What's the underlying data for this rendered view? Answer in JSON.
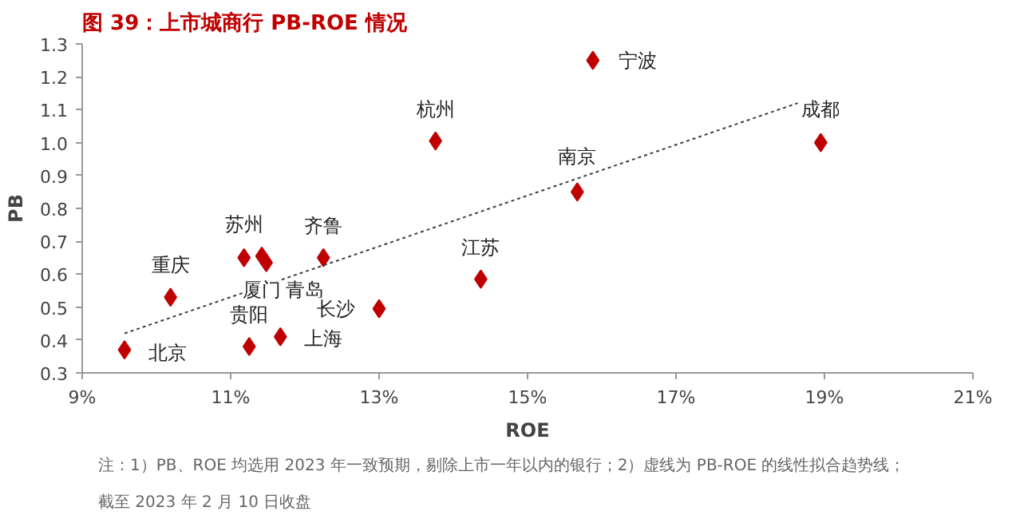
{
  "chart_data": {
    "type": "scatter",
    "title": "图 39：上市城商行 PB-ROE 情况",
    "xlabel": "ROE",
    "ylabel": "PB",
    "xlim": [
      9,
      21
    ],
    "xticks": [
      {
        "value": 9,
        "label": "9%"
      },
      {
        "value": 11,
        "label": "11%"
      },
      {
        "value": 13,
        "label": "13%"
      },
      {
        "value": 15,
        "label": "15%"
      },
      {
        "value": 17,
        "label": "17%"
      },
      {
        "value": 19,
        "label": "19%"
      },
      {
        "value": 21,
        "label": "21%"
      }
    ],
    "ylim": [
      0.3,
      1.3
    ],
    "yticks": [
      0.3,
      0.4,
      0.5,
      0.6,
      0.7,
      0.8,
      0.9,
      {
        "value": 1.0,
        "label": "1.0"
      },
      1.1,
      1.2,
      1.3
    ],
    "grid": false,
    "marker": "diamond",
    "series": [
      {
        "color": "#c00000",
        "x": [
          9.57,
          10.19,
          11.18,
          11.42,
          11.48,
          11.25,
          12.25,
          11.67,
          13.0,
          13.76,
          14.37,
          15.88,
          15.67,
          18.95
        ],
        "values": [
          0.37,
          0.53,
          0.65,
          0.655,
          0.635,
          0.38,
          0.65,
          0.41,
          0.495,
          1.005,
          0.585,
          1.25,
          0.85,
          1.0
        ]
      },
      {
        "type": "line",
        "color": "#404040",
        "line_style": "dotted",
        "marker": "none",
        "x": [
          9.57,
          18.64
        ],
        "values": [
          0.42,
          1.12
        ]
      }
    ],
    "annotations": [
      {
        "text": "北京",
        "x": 9.57,
        "y": 0.37
      },
      {
        "text": "重庆",
        "x": 10.19,
        "y": 0.53
      },
      {
        "text": "苏州",
        "x": 11.18,
        "y": 0.65
      },
      {
        "text": "厦门",
        "x": 11.42,
        "y": 0.655
      },
      {
        "text": "青岛",
        "x": 11.48,
        "y": 0.635
      },
      {
        "text": "贵阳",
        "x": 11.25,
        "y": 0.38
      },
      {
        "text": "齐鲁",
        "x": 12.25,
        "y": 0.65
      },
      {
        "text": "上海",
        "x": 11.67,
        "y": 0.41
      },
      {
        "text": "长沙",
        "x": 13.0,
        "y": 0.495
      },
      {
        "text": "杭州",
        "x": 13.76,
        "y": 1.005
      },
      {
        "text": "江苏",
        "x": 14.37,
        "y": 0.585
      },
      {
        "text": "宁波",
        "x": 15.88,
        "y": 1.25
      },
      {
        "text": "南京",
        "x": 15.67,
        "y": 0.85
      },
      {
        "text": "成都",
        "x": 18.95,
        "y": 1.0
      },
      "注：1）PB、ROE 均选用 2023 年一致预期，剔除上市一年以内的银行；2）虚线为 PB-ROE 的线性拟合趋势线；",
      "截至 2023 年 2 月 10 日收盘"
    ]
  }
}
